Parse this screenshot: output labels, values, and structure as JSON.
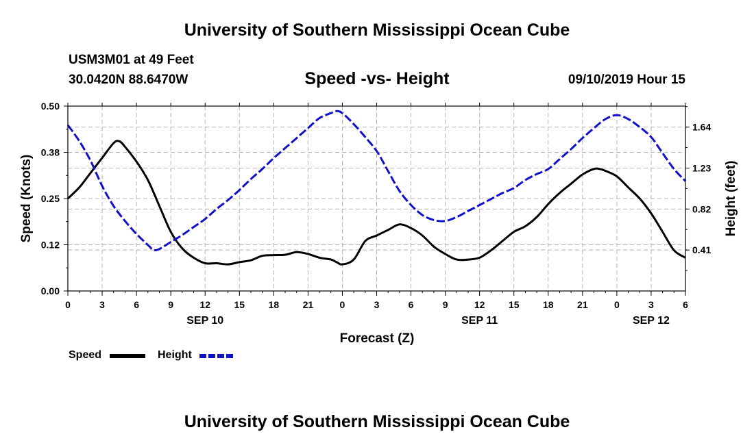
{
  "header": {
    "title_top": "University of Southern Mississippi Ocean Cube",
    "station": "USM3M01 at 49 Feet",
    "coords": "30.0420N 88.6470W",
    "chart_title": "Speed -vs- Height",
    "run_time": "09/10/2019 Hour 15"
  },
  "footer": {
    "title_bottom": "University of Southern Mississippi Ocean Cube"
  },
  "legend": {
    "speed_label": "Speed",
    "height_label": "Height"
  },
  "colors": {
    "speed": "#000000",
    "height": "#1010cc",
    "grid": "#b4b4b4"
  },
  "chart_data": {
    "type": "line",
    "title": "Speed -vs- Height",
    "xlabel": "Forecast (Z)",
    "ylabel_left": "Speed (Knots)",
    "ylabel_right": "Height (feet)",
    "x_range_hours": [
      0,
      54
    ],
    "x_ticks": [
      {
        "h": 0,
        "label": "0"
      },
      {
        "h": 3,
        "label": "3"
      },
      {
        "h": 6,
        "label": "6"
      },
      {
        "h": 9,
        "label": "9"
      },
      {
        "h": 12,
        "label": "12"
      },
      {
        "h": 15,
        "label": "15"
      },
      {
        "h": 18,
        "label": "18"
      },
      {
        "h": 21,
        "label": "21"
      },
      {
        "h": 24,
        "label": "0"
      },
      {
        "h": 27,
        "label": "3"
      },
      {
        "h": 30,
        "label": "6"
      },
      {
        "h": 33,
        "label": "9"
      },
      {
        "h": 36,
        "label": "12"
      },
      {
        "h": 39,
        "label": "15"
      },
      {
        "h": 42,
        "label": "18"
      },
      {
        "h": 45,
        "label": "21"
      },
      {
        "h": 48,
        "label": "0"
      },
      {
        "h": 51,
        "label": "3"
      },
      {
        "h": 54,
        "label": "6"
      }
    ],
    "date_labels": [
      {
        "h": 12,
        "label": "SEP 10"
      },
      {
        "h": 36,
        "label": "SEP 11"
      },
      {
        "h": 51,
        "label": "SEP 12"
      }
    ],
    "y_left": {
      "range": [
        0,
        0.5
      ],
      "ticks": [
        "0.00",
        "0.12",
        "0.25",
        "0.38",
        "0.50"
      ],
      "tick_values": [
        0,
        0.125,
        0.25,
        0.375,
        0.5
      ]
    },
    "y_right": {
      "range": [
        0.0,
        1.85
      ],
      "ticks": [
        "0.41",
        "0.82",
        "1.23",
        "1.64"
      ],
      "tick_values": [
        0.41,
        0.82,
        1.23,
        1.64
      ]
    },
    "series": [
      {
        "name": "Speed",
        "axis": "left",
        "style": "solid",
        "x": [
          0,
          1,
          2,
          3,
          4,
          4.5,
          5,
          6,
          7,
          8,
          9,
          10,
          11,
          12,
          13,
          14,
          15,
          16,
          17,
          18,
          19,
          20,
          21,
          22,
          23,
          23.5,
          24,
          25,
          26,
          27,
          28,
          29,
          30,
          31,
          32,
          33,
          34,
          35,
          36,
          37,
          38,
          39,
          40,
          41,
          42,
          43,
          44,
          45,
          46,
          46.5,
          47,
          48,
          49,
          50,
          51,
          52,
          53,
          54
        ],
        "values": [
          0.25,
          0.28,
          0.32,
          0.36,
          0.4,
          0.405,
          0.39,
          0.35,
          0.3,
          0.23,
          0.16,
          0.115,
          0.09,
          0.075,
          0.075,
          0.072,
          0.078,
          0.083,
          0.095,
          0.097,
          0.098,
          0.105,
          0.1,
          0.09,
          0.085,
          0.078,
          0.072,
          0.085,
          0.135,
          0.15,
          0.165,
          0.18,
          0.17,
          0.15,
          0.12,
          0.1,
          0.085,
          0.085,
          0.09,
          0.11,
          0.135,
          0.16,
          0.175,
          0.2,
          0.235,
          0.265,
          0.29,
          0.315,
          0.33,
          0.33,
          0.325,
          0.31,
          0.28,
          0.25,
          0.21,
          0.16,
          0.11,
          0.09
        ]
      },
      {
        "name": "Height",
        "axis": "right",
        "style": "dashed",
        "x": [
          0,
          1,
          2,
          3,
          4,
          5,
          6,
          7,
          7.5,
          8,
          9,
          10,
          11,
          12,
          13,
          14,
          15,
          16,
          17,
          18,
          19,
          20,
          21,
          22,
          23,
          23.5,
          24,
          25,
          26,
          27,
          28,
          29,
          30,
          31,
          32,
          33,
          34,
          35,
          36,
          37,
          38,
          39,
          40,
          41,
          42,
          43,
          44,
          45,
          46,
          47,
          48,
          49,
          50,
          51,
          52,
          53,
          54
        ],
        "values": [
          1.66,
          1.5,
          1.3,
          1.05,
          0.85,
          0.7,
          0.57,
          0.46,
          0.41,
          0.42,
          0.49,
          0.56,
          0.64,
          0.72,
          0.82,
          0.91,
          1.01,
          1.12,
          1.22,
          1.33,
          1.43,
          1.53,
          1.63,
          1.73,
          1.78,
          1.8,
          1.78,
          1.67,
          1.54,
          1.4,
          1.2,
          1.0,
          0.86,
          0.76,
          0.71,
          0.7,
          0.74,
          0.8,
          0.86,
          0.92,
          0.98,
          1.03,
          1.11,
          1.17,
          1.22,
          1.32,
          1.42,
          1.53,
          1.63,
          1.72,
          1.76,
          1.72,
          1.64,
          1.54,
          1.38,
          1.22,
          1.1
        ]
      }
    ]
  }
}
